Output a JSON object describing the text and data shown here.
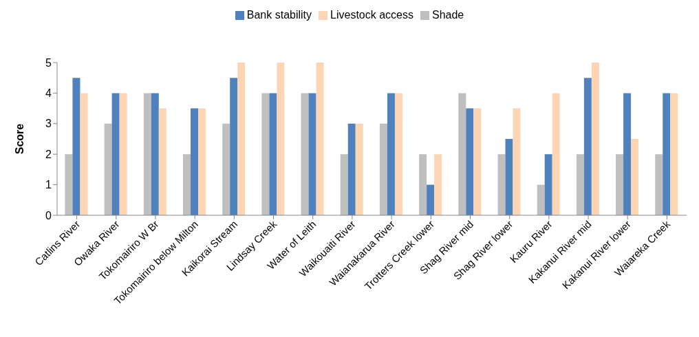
{
  "chart_data": {
    "type": "bar",
    "ylabel": "Score",
    "legend": "top",
    "categories": [
      "Catlins River",
      "Owaka River",
      "Tokomairiro W Br",
      "Tokomairiro below Milton",
      "Kaikorai Stream",
      "Lindsay Creek",
      "Water of Leith",
      "Waikouaiti River",
      "Waianakarua River",
      "Trotters Creek lower",
      "Shag River mid",
      "Shag River lower",
      "Kauru River",
      "Kakanui River mid",
      "Kakanui River lower",
      "Waiareka Creek"
    ],
    "series": [
      {
        "name": "Shade",
        "color": "#bfbfbf",
        "values": [
          2,
          3,
          4,
          2,
          3,
          4,
          4,
          2,
          3,
          2,
          4,
          2,
          1,
          2,
          2,
          2
        ]
      },
      {
        "name": "Bank stability",
        "color": "#4f81bd",
        "values": [
          4.5,
          4,
          4,
          3.5,
          4.5,
          4,
          4,
          3,
          4,
          1,
          3.5,
          2.5,
          2,
          4.5,
          4,
          4
        ]
      },
      {
        "name": "Livestock access",
        "color": "#fcd5b5",
        "values": [
          4,
          4,
          3.5,
          3.5,
          5,
          5,
          5,
          3,
          4,
          2,
          3.5,
          3.5,
          4,
          5,
          2.5,
          4
        ]
      }
    ],
    "ylim": [
      0,
      5
    ],
    "yticks": [
      0,
      1,
      2,
      3,
      4,
      5
    ]
  }
}
